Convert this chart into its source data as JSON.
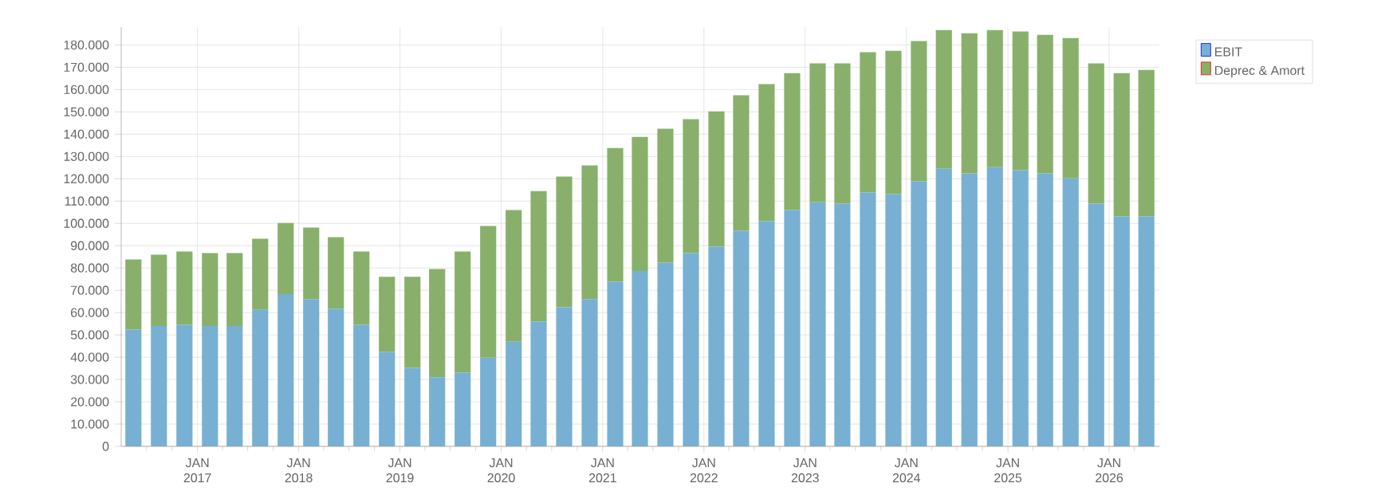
{
  "chart_data": {
    "type": "bar",
    "stacked": true,
    "x": [
      "2016-05-15",
      "2016-08-15",
      "2016-11-15",
      "2017-02-15",
      "2017-05-15",
      "2017-08-15",
      "2017-11-15",
      "2018-02-15",
      "2018-05-15",
      "2018-08-15",
      "2018-11-15",
      "2019-02-15",
      "2019-05-15",
      "2019-08-15",
      "2019-11-15",
      "2020-02-15",
      "2020-05-15",
      "2020-08-15",
      "2020-11-15",
      "2021-02-15",
      "2021-05-15",
      "2021-08-15",
      "2021-11-15",
      "2022-02-15",
      "2022-05-15",
      "2022-08-15",
      "2022-11-15",
      "2023-02-15",
      "2023-05-15",
      "2023-08-15",
      "2023-11-15",
      "2024-02-15",
      "2024-05-15",
      "2024-08-15",
      "2024-11-15",
      "2025-02-15",
      "2025-05-15",
      "2025-08-15",
      "2025-11-15",
      "2026-02-15",
      "2026-05-15"
    ],
    "series": [
      {
        "name": "EBIT",
        "color": "#77b0d2",
        "values": [
          52400,
          54000,
          54500,
          54000,
          54000,
          61200,
          68300,
          66000,
          61700,
          54500,
          42400,
          35200,
          31000,
          33100,
          39800,
          46900,
          56000,
          62400,
          66000,
          73800,
          78600,
          82400,
          86700,
          89500,
          96700,
          101000,
          106000,
          109500,
          108800,
          113800,
          113100,
          118800,
          124500,
          122400,
          125200,
          123800,
          122400,
          120200,
          108800,
          103100,
          103100
        ]
      },
      {
        "name": "Deprec & Amort",
        "color": "#88b06a",
        "values": [
          31400,
          32000,
          32900,
          32700,
          32700,
          31900,
          31900,
          32100,
          32100,
          32900,
          33600,
          40800,
          48500,
          54300,
          59000,
          59100,
          58500,
          58600,
          60000,
          60000,
          60200,
          60000,
          60000,
          60700,
          60700,
          61400,
          61400,
          62200,
          62900,
          62900,
          64300,
          62900,
          62200,
          62800,
          61500,
          62200,
          62100,
          62900,
          62900,
          64300,
          65700
        ]
      }
    ],
    "xlim": [
      "2016-04-01",
      "2026-07-01"
    ],
    "xticks": [
      {
        "value": "2016-07-01",
        "label": null
      },
      {
        "value": "2016-10-01",
        "label": null
      },
      {
        "value": "2017-01-01",
        "label": "JAN 2017"
      },
      {
        "value": "2017-04-01",
        "label": null
      },
      {
        "value": "2017-07-01",
        "label": null
      },
      {
        "value": "2017-10-01",
        "label": null
      },
      {
        "value": "2018-01-01",
        "label": "JAN 2018"
      },
      {
        "value": "2018-04-01",
        "label": null
      },
      {
        "value": "2018-07-01",
        "label": null
      },
      {
        "value": "2018-10-01",
        "label": null
      },
      {
        "value": "2019-01-01",
        "label": "JAN 2019"
      },
      {
        "value": "2019-04-01",
        "label": null
      },
      {
        "value": "2019-07-01",
        "label": null
      },
      {
        "value": "2019-10-01",
        "label": null
      },
      {
        "value": "2020-01-01",
        "label": "JAN 2020"
      },
      {
        "value": "2020-04-01",
        "label": null
      },
      {
        "value": "2020-07-01",
        "label": null
      },
      {
        "value": "2020-10-01",
        "label": null
      },
      {
        "value": "2021-01-01",
        "label": "JAN 2021"
      },
      {
        "value": "2021-04-01",
        "label": null
      },
      {
        "value": "2021-07-01",
        "label": null
      },
      {
        "value": "2021-10-01",
        "label": null
      },
      {
        "value": "2022-01-01",
        "label": "JAN 2022"
      },
      {
        "value": "2022-04-01",
        "label": null
      },
      {
        "value": "2022-07-01",
        "label": null
      },
      {
        "value": "2022-10-01",
        "label": null
      },
      {
        "value": "2023-01-01",
        "label": "JAN 2023"
      },
      {
        "value": "2023-04-01",
        "label": null
      },
      {
        "value": "2023-07-01",
        "label": null
      },
      {
        "value": "2023-10-01",
        "label": null
      },
      {
        "value": "2024-01-01",
        "label": "JAN 2024"
      },
      {
        "value": "2024-04-01",
        "label": null
      },
      {
        "value": "2024-07-01",
        "label": null
      },
      {
        "value": "2024-10-01",
        "label": null
      },
      {
        "value": "2025-01-01",
        "label": "JAN 2025"
      },
      {
        "value": "2025-04-01",
        "label": null
      },
      {
        "value": "2025-07-01",
        "label": null
      },
      {
        "value": "2025-10-01",
        "label": null
      },
      {
        "value": "2026-01-01",
        "label": "JAN 2026"
      },
      {
        "value": "2026-04-01",
        "label": null
      }
    ],
    "ylim": [
      0,
      188000
    ],
    "yticks": [
      0,
      {
        "value": 10000,
        "label": "10.000"
      },
      {
        "value": 20000,
        "label": "20.000"
      },
      {
        "value": 30000,
        "label": "30.000"
      },
      {
        "value": 40000,
        "label": "40.000"
      },
      {
        "value": 50000,
        "label": "50.000"
      },
      {
        "value": 60000,
        "label": "60.000"
      },
      {
        "value": 70000,
        "label": "70.000"
      },
      {
        "value": 80000,
        "label": "80.000"
      },
      {
        "value": 90000,
        "label": "90.000"
      },
      {
        "value": 100000,
        "label": "100.000"
      },
      {
        "value": 110000,
        "label": "110.000"
      },
      {
        "value": 120000,
        "label": "120.000"
      },
      {
        "value": 130000,
        "label": "130.000"
      },
      {
        "value": 140000,
        "label": "140.000"
      },
      {
        "value": 150000,
        "label": "150.000"
      },
      {
        "value": 160000,
        "label": "160.000"
      },
      {
        "value": 170000,
        "label": "170.000"
      },
      {
        "value": 180000,
        "label": "180.000"
      }
    ],
    "grid": true,
    "legend": "top right"
  }
}
